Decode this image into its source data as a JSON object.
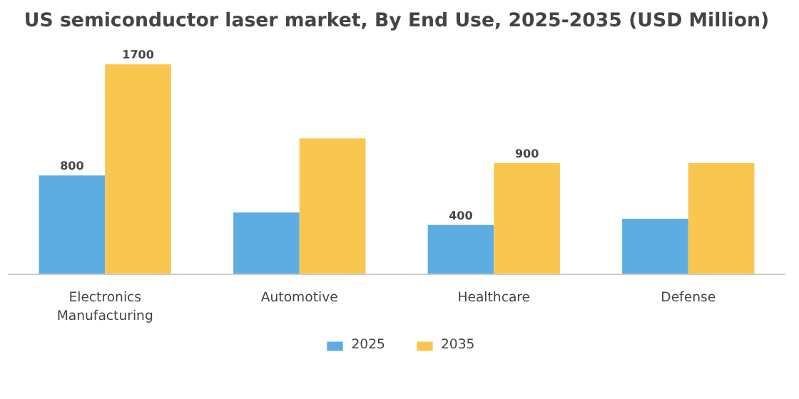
{
  "chart_data": {
    "type": "bar",
    "title": "US semiconductor laser market, By End Use, 2025-2035 (USD Million)",
    "categories": [
      "Electronics\nManufacturing",
      "Automotive",
      "Healthcare",
      "Defense"
    ],
    "series": [
      {
        "name": "2025",
        "color": "#5dade2",
        "values": [
          800,
          500,
          400,
          450
        ],
        "value_labels": [
          "800",
          null,
          "400",
          null
        ]
      },
      {
        "name": "2035",
        "color": "#f9c74f",
        "values": [
          1700,
          1100,
          900,
          900
        ],
        "value_labels": [
          "1700",
          null,
          "900",
          null
        ]
      }
    ],
    "legend": "bottom",
    "grid": false
  }
}
